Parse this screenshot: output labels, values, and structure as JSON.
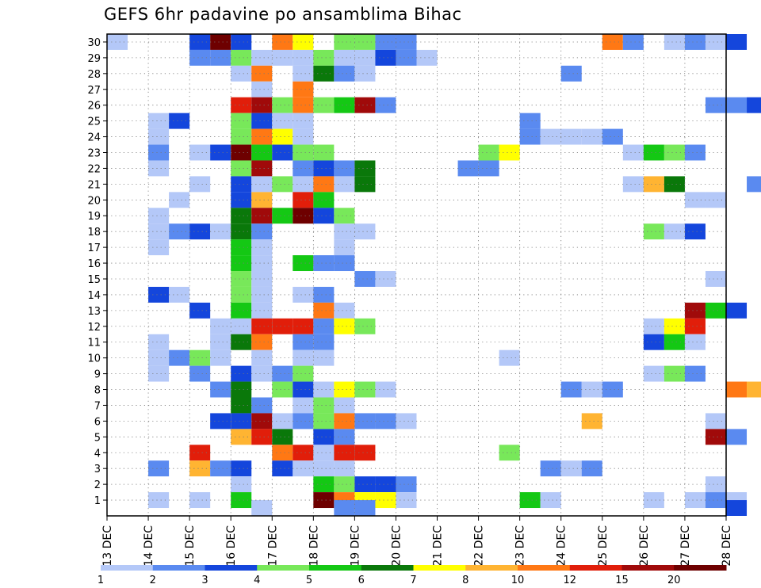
{
  "chart_data": {
    "type": "heatmap",
    "title": "GEFS 6hr padavine po ansamblima Bihac",
    "xlabel": "",
    "ylabel": "",
    "x_ticks": [
      "13 DEC",
      "14 DEC",
      "15 DEC",
      "16 DEC",
      "17 DEC",
      "18 DEC",
      "19 DEC",
      "20 DEC",
      "21 DEC",
      "22 DEC",
      "23 DEC",
      "24 DEC",
      "25 DEC",
      "26 DEC",
      "27 DEC",
      "28 DEC"
    ],
    "y_ticks": [
      "1",
      "2",
      "3",
      "4",
      "5",
      "6",
      "7",
      "8",
      "9",
      "10",
      "11",
      "12",
      "13",
      "14",
      "15",
      "16",
      "17",
      "18",
      "19",
      "20",
      "21",
      "22",
      "23",
      "24",
      "25",
      "26",
      "27",
      "28",
      "29",
      "30"
    ],
    "xlim": [
      0,
      60
    ],
    "ylim": [
      0,
      30.5
    ],
    "grid": true,
    "colorbar": {
      "labels": [
        "1",
        "2",
        "3",
        "4",
        "5",
        "6",
        "7",
        "8",
        "10",
        "12",
        "15",
        "20"
      ],
      "colors": [
        "#b4c8f8",
        "#5a8af0",
        "#1446dc",
        "#78e85a",
        "#14c814",
        "#0a780a",
        "#ffff00",
        "#ffb432",
        "#ff7814",
        "#e11e0a",
        "#a00a0a",
        "#6e0000"
      ]
    },
    "cells": [
      [
        0,
        30,
        0
      ],
      [
        4,
        30,
        2
      ],
      [
        5,
        30,
        11
      ],
      [
        6,
        30,
        2
      ],
      [
        8,
        30,
        8
      ],
      [
        9,
        30,
        6
      ],
      [
        11,
        30,
        3
      ],
      [
        12,
        30,
        3
      ],
      [
        13,
        30,
        1
      ],
      [
        14,
        30,
        1
      ],
      [
        24,
        30,
        8
      ],
      [
        25,
        30,
        1
      ],
      [
        27,
        30,
        0
      ],
      [
        28,
        30,
        1
      ],
      [
        29,
        30,
        0
      ],
      [
        30,
        30,
        2
      ],
      [
        4,
        29,
        1
      ],
      [
        5,
        29,
        1
      ],
      [
        6,
        29,
        3
      ],
      [
        7,
        29,
        0
      ],
      [
        8,
        29,
        0
      ],
      [
        9,
        29,
        0
      ],
      [
        10,
        29,
        3
      ],
      [
        11,
        29,
        0
      ],
      [
        12,
        29,
        0
      ],
      [
        13,
        29,
        2
      ],
      [
        14,
        29,
        1
      ],
      [
        15,
        29,
        0
      ],
      [
        6,
        28,
        0
      ],
      [
        7,
        28,
        8
      ],
      [
        9,
        28,
        0
      ],
      [
        10,
        28,
        5
      ],
      [
        11,
        28,
        1
      ],
      [
        12,
        28,
        0
      ],
      [
        22,
        28,
        1
      ],
      [
        7,
        27,
        0
      ],
      [
        9,
        27,
        8
      ],
      [
        6,
        26,
        9
      ],
      [
        7,
        26,
        10
      ],
      [
        8,
        26,
        3
      ],
      [
        9,
        26,
        8
      ],
      [
        10,
        26,
        3
      ],
      [
        11,
        26,
        4
      ],
      [
        12,
        26,
        10
      ],
      [
        13,
        26,
        1
      ],
      [
        29,
        26,
        1
      ],
      [
        30,
        26,
        1
      ],
      [
        31,
        26,
        2
      ],
      [
        2,
        25,
        0
      ],
      [
        3,
        25,
        2
      ],
      [
        6,
        25,
        3
      ],
      [
        7,
        25,
        2
      ],
      [
        8,
        25,
        0
      ],
      [
        9,
        25,
        0
      ],
      [
        20,
        25,
        1
      ],
      [
        2,
        24,
        0
      ],
      [
        6,
        24,
        3
      ],
      [
        7,
        24,
        8
      ],
      [
        8,
        24,
        6
      ],
      [
        9,
        24,
        0
      ],
      [
        20,
        24,
        1
      ],
      [
        21,
        24,
        0
      ],
      [
        22,
        24,
        0
      ],
      [
        23,
        24,
        0
      ],
      [
        24,
        24,
        1
      ],
      [
        2,
        23,
        1
      ],
      [
        4,
        23,
        0
      ],
      [
        5,
        23,
        2
      ],
      [
        6,
        23,
        11
      ],
      [
        7,
        23,
        4
      ],
      [
        8,
        23,
        2
      ],
      [
        9,
        23,
        3
      ],
      [
        10,
        23,
        3
      ],
      [
        18,
        23,
        3
      ],
      [
        19,
        23,
        6
      ],
      [
        25,
        23,
        0
      ],
      [
        26,
        23,
        4
      ],
      [
        27,
        23,
        3
      ],
      [
        28,
        23,
        1
      ],
      [
        2,
        22,
        0
      ],
      [
        6,
        22,
        3
      ],
      [
        7,
        22,
        10
      ],
      [
        9,
        22,
        1
      ],
      [
        10,
        22,
        2
      ],
      [
        11,
        22,
        1
      ],
      [
        12,
        22,
        5
      ],
      [
        17,
        22,
        1
      ],
      [
        18,
        22,
        1
      ],
      [
        4,
        21,
        0
      ],
      [
        6,
        21,
        2
      ],
      [
        7,
        21,
        0
      ],
      [
        8,
        21,
        3
      ],
      [
        9,
        21,
        0
      ],
      [
        10,
        21,
        8
      ],
      [
        11,
        21,
        0
      ],
      [
        12,
        21,
        5
      ],
      [
        25,
        21,
        0
      ],
      [
        26,
        21,
        7
      ],
      [
        27,
        21,
        5
      ],
      [
        31,
        21,
        1
      ],
      [
        3,
        20,
        0
      ],
      [
        6,
        20,
        2
      ],
      [
        7,
        20,
        7
      ],
      [
        9,
        20,
        9
      ],
      [
        10,
        20,
        4
      ],
      [
        28,
        20,
        0
      ],
      [
        29,
        20,
        0
      ],
      [
        2,
        19,
        0
      ],
      [
        6,
        19,
        5
      ],
      [
        7,
        19,
        10
      ],
      [
        8,
        19,
        4
      ],
      [
        9,
        19,
        11
      ],
      [
        10,
        19,
        2
      ],
      [
        11,
        19,
        3
      ],
      [
        2,
        18,
        0
      ],
      [
        3,
        18,
        1
      ],
      [
        4,
        18,
        2
      ],
      [
        5,
        18,
        0
      ],
      [
        6,
        18,
        5
      ],
      [
        7,
        18,
        1
      ],
      [
        11,
        18,
        0
      ],
      [
        12,
        18,
        0
      ],
      [
        26,
        18,
        3
      ],
      [
        27,
        18,
        0
      ],
      [
        28,
        18,
        2
      ],
      [
        2,
        17,
        0
      ],
      [
        6,
        17,
        4
      ],
      [
        7,
        17,
        0
      ],
      [
        11,
        17,
        0
      ],
      [
        6,
        16,
        4
      ],
      [
        7,
        16,
        0
      ],
      [
        9,
        16,
        4
      ],
      [
        10,
        16,
        1
      ],
      [
        11,
        16,
        1
      ],
      [
        6,
        15,
        3
      ],
      [
        7,
        15,
        0
      ],
      [
        12,
        15,
        1
      ],
      [
        13,
        15,
        0
      ],
      [
        29,
        15,
        0
      ],
      [
        2,
        14,
        2
      ],
      [
        3,
        14,
        0
      ],
      [
        6,
        14,
        3
      ],
      [
        7,
        14,
        0
      ],
      [
        9,
        14,
        0
      ],
      [
        10,
        14,
        1
      ],
      [
        4,
        13,
        2
      ],
      [
        6,
        13,
        4
      ],
      [
        7,
        13,
        0
      ],
      [
        10,
        13,
        8
      ],
      [
        11,
        13,
        0
      ],
      [
        28,
        13,
        10
      ],
      [
        29,
        13,
        4
      ],
      [
        30,
        13,
        2
      ],
      [
        5,
        12,
        0
      ],
      [
        6,
        12,
        0
      ],
      [
        7,
        12,
        9
      ],
      [
        8,
        12,
        9
      ],
      [
        9,
        12,
        9
      ],
      [
        10,
        12,
        1
      ],
      [
        11,
        12,
        6
      ],
      [
        12,
        12,
        3
      ],
      [
        26,
        12,
        0
      ],
      [
        27,
        12,
        6
      ],
      [
        28,
        12,
        9
      ],
      [
        2,
        11,
        0
      ],
      [
        5,
        11,
        0
      ],
      [
        6,
        11,
        5
      ],
      [
        7,
        11,
        8
      ],
      [
        9,
        11,
        1
      ],
      [
        10,
        11,
        1
      ],
      [
        26,
        11,
        2
      ],
      [
        27,
        11,
        4
      ],
      [
        28,
        11,
        0
      ],
      [
        2,
        10,
        0
      ],
      [
        3,
        10,
        1
      ],
      [
        4,
        10,
        3
      ],
      [
        5,
        10,
        0
      ],
      [
        7,
        10,
        0
      ],
      [
        9,
        10,
        0
      ],
      [
        10,
        10,
        0
      ],
      [
        19,
        10,
        0
      ],
      [
        2,
        9,
        0
      ],
      [
        4,
        9,
        1
      ],
      [
        6,
        9,
        2
      ],
      [
        7,
        9,
        0
      ],
      [
        8,
        9,
        1
      ],
      [
        9,
        9,
        3
      ],
      [
        26,
        9,
        0
      ],
      [
        27,
        9,
        3
      ],
      [
        28,
        9,
        1
      ],
      [
        5,
        8,
        1
      ],
      [
        6,
        8,
        5
      ],
      [
        8,
        8,
        3
      ],
      [
        9,
        8,
        2
      ],
      [
        10,
        8,
        0
      ],
      [
        11,
        8,
        6
      ],
      [
        12,
        8,
        3
      ],
      [
        13,
        8,
        0
      ],
      [
        22,
        8,
        1
      ],
      [
        23,
        8,
        0
      ],
      [
        24,
        8,
        1
      ],
      [
        30,
        8,
        8
      ],
      [
        31,
        8,
        7
      ],
      [
        6,
        7,
        5
      ],
      [
        7,
        7,
        1
      ],
      [
        9,
        7,
        0
      ],
      [
        10,
        7,
        3
      ],
      [
        11,
        7,
        0
      ],
      [
        5,
        6,
        2
      ],
      [
        6,
        6,
        2
      ],
      [
        7,
        6,
        10
      ],
      [
        8,
        6,
        0
      ],
      [
        9,
        6,
        1
      ],
      [
        10,
        6,
        3
      ],
      [
        11,
        6,
        8
      ],
      [
        12,
        6,
        1
      ],
      [
        13,
        6,
        1
      ],
      [
        14,
        6,
        0
      ],
      [
        23,
        6,
        7
      ],
      [
        29,
        6,
        0
      ],
      [
        6,
        5,
        7
      ],
      [
        7,
        5,
        9
      ],
      [
        8,
        5,
        5
      ],
      [
        10,
        5,
        2
      ],
      [
        11,
        5,
        1
      ],
      [
        29,
        5,
        10
      ],
      [
        30,
        5,
        1
      ],
      [
        4,
        4,
        9
      ],
      [
        8,
        4,
        8
      ],
      [
        9,
        4,
        9
      ],
      [
        10,
        4,
        0
      ],
      [
        11,
        4,
        9
      ],
      [
        12,
        4,
        9
      ],
      [
        19,
        4,
        3
      ],
      [
        2,
        3,
        1
      ],
      [
        4,
        3,
        7
      ],
      [
        5,
        3,
        1
      ],
      [
        6,
        3,
        2
      ],
      [
        8,
        3,
        2
      ],
      [
        9,
        3,
        0
      ],
      [
        10,
        3,
        0
      ],
      [
        11,
        3,
        0
      ],
      [
        21,
        3,
        1
      ],
      [
        22,
        3,
        0
      ],
      [
        23,
        3,
        1
      ],
      [
        6,
        2,
        0
      ],
      [
        10,
        2,
        4
      ],
      [
        11,
        2,
        3
      ],
      [
        12,
        2,
        2
      ],
      [
        13,
        2,
        2
      ],
      [
        14,
        2,
        1
      ],
      [
        29,
        2,
        0
      ],
      [
        2,
        1,
        0
      ],
      [
        4,
        1,
        0
      ],
      [
        6,
        1,
        4
      ],
      [
        10,
        1,
        11
      ],
      [
        11,
        1,
        8
      ],
      [
        12,
        1,
        6
      ],
      [
        13,
        1,
        6
      ],
      [
        14,
        1,
        0
      ],
      [
        20,
        1,
        4
      ],
      [
        21,
        1,
        0
      ],
      [
        26,
        1,
        0
      ],
      [
        28,
        1,
        0
      ],
      [
        29,
        1,
        1
      ],
      [
        30,
        1,
        0
      ],
      [
        7,
        0.5,
        0
      ],
      [
        11,
        0.5,
        1
      ],
      [
        12,
        0.5,
        1
      ],
      [
        30,
        0.5,
        2
      ]
    ]
  }
}
